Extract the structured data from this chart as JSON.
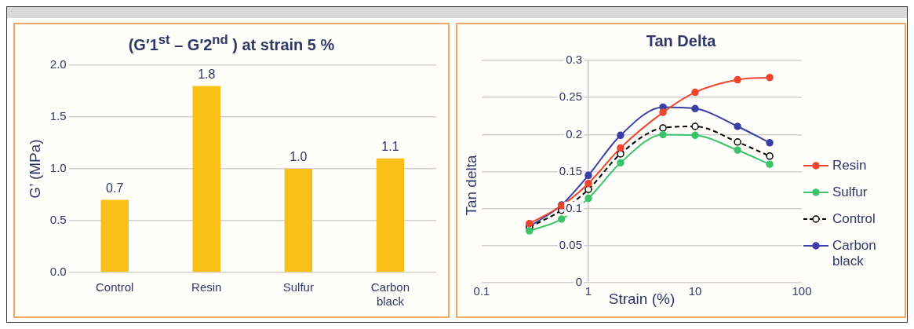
{
  "chart_data": [
    {
      "type": "bar",
      "title": "(G′1$^{st}$ – G′2$^{nd}$ ) at strain 5 %",
      "ylabel": "G’ (MPa)",
      "categories": [
        "Control",
        "Resin",
        "Sulfur",
        "Carbon black"
      ],
      "values": [
        0.7,
        1.8,
        1.0,
        1.1
      ],
      "color": "#f9bf16",
      "ylim": [
        0,
        2
      ],
      "yticks": [
        {
          "value": 0,
          "label": "0.0"
        },
        {
          "value": 0.5,
          "label": "0.5"
        },
        {
          "value": 1,
          "label": "1.0"
        },
        {
          "value": 1.5,
          "label": "1.5"
        },
        {
          "value": 2,
          "label": "2.0"
        }
      ],
      "data_labels": true,
      "value_labels": [
        "0.7",
        "1.8",
        "1.0",
        "1.1"
      ],
      "grid": "y",
      "legend": false
    },
    {
      "type": "line",
      "title": "Tan Delta",
      "xlabel": "Strain (%)",
      "ylabel": "Tan delta",
      "log": "x",
      "xlim": [
        0.1,
        100
      ],
      "xticks": [
        0.1,
        1,
        10,
        100
      ],
      "ylim": [
        0,
        0.3
      ],
      "yticks": [
        0,
        0.05,
        0.1,
        0.15,
        0.2,
        0.25,
        0.3
      ],
      "grid": "y",
      "legend": "right",
      "marker": "circle",
      "x": [
        0.28,
        0.56,
        1,
        2,
        5,
        10,
        25,
        50
      ],
      "series": [
        {
          "name": "Resin",
          "color": "#f0442c",
          "line_style": "solid",
          "values": [
            0.08,
            0.104,
            0.134,
            0.182,
            0.23,
            0.257,
            0.274,
            0.277
          ]
        },
        {
          "name": "Sulfur",
          "color": "#3cc46a",
          "line_style": "solid",
          "values": [
            0.07,
            0.086,
            0.114,
            0.162,
            0.2,
            0.199,
            0.179,
            0.16
          ]
        },
        {
          "name": "Control",
          "color": "#000000",
          "line_style": "dashed",
          "values": [
            0.075,
            0.098,
            0.126,
            0.174,
            0.209,
            0.211,
            0.19,
            0.171
          ]
        },
        {
          "name": "Carbon black",
          "color": "#3a3fa8",
          "line_style": "solid",
          "values": [
            0.076,
            0.105,
            0.145,
            0.199,
            0.237,
            0.235,
            0.211,
            0.189
          ]
        }
      ]
    }
  ]
}
